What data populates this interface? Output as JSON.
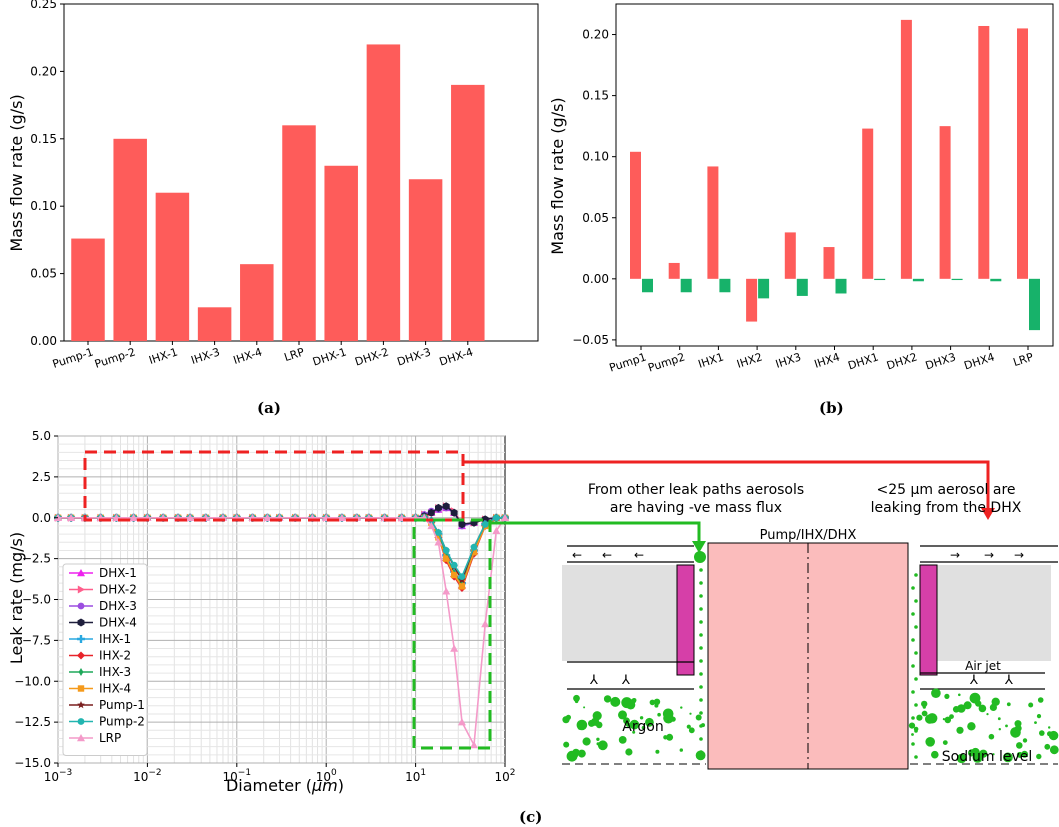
{
  "captions": {
    "a": "(a)",
    "b": "(b)",
    "c": "(c)"
  },
  "colors": {
    "red": "#fe5c5a",
    "green": "#17b26a",
    "diagram_pink": "#fbbcbc",
    "magenta": "#d63fa8",
    "grey": "#e0e0e0",
    "arrow_red": "#ee2222",
    "arrow_green": "#22bb22"
  },
  "chart_data": [
    {
      "id": "a",
      "type": "bar",
      "categories": [
        "Pump-1",
        "Pump-2",
        "IHX-1",
        "IHX-3",
        "IHX-4",
        "LRP",
        "DHX-1",
        "DHX-2",
        "DHX-3",
        "DHX-4"
      ],
      "values": [
        0.076,
        0.15,
        0.11,
        0.025,
        0.057,
        0.16,
        0.13,
        0.22,
        0.12,
        0.19
      ],
      "xlabel": "",
      "ylabel": "Mass flow rate (g/s)",
      "ylim": [
        0,
        0.25
      ],
      "yticks": [
        "0.00",
        "0.05",
        "0.10",
        "0.15",
        "0.20",
        "0.25"
      ],
      "ytick_values": [
        0,
        0.05,
        0.1,
        0.15,
        0.2,
        0.25
      ]
    },
    {
      "id": "b",
      "type": "bar",
      "categories": [
        "Pump1",
        "Pump2",
        "IHX1",
        "IHX2",
        "IHX3",
        "IHX4",
        "DHX1",
        "DHX2",
        "DHX3",
        "DHX4",
        "LRP"
      ],
      "series": [
        {
          "name": "positive",
          "values": [
            0.104,
            0.013,
            0.092,
            -0.035,
            0.038,
            0.026,
            0.123,
            0.212,
            0.125,
            0.207,
            0.205
          ]
        },
        {
          "name": "negative",
          "values": [
            -0.011,
            -0.011,
            -0.011,
            -0.016,
            -0.014,
            -0.012,
            -0.001,
            -0.002,
            -0.001,
            -0.002,
            -0.042
          ]
        }
      ],
      "xlabel": "",
      "ylabel": "Mass flow rate (g/s)",
      "ylim": [
        -0.055,
        0.225
      ],
      "yticks": [
        "−0.05",
        "0.00",
        "0.05",
        "0.10",
        "0.15",
        "0.20"
      ],
      "ytick_values": [
        -0.05,
        0,
        0.05,
        0.1,
        0.15,
        0.2
      ]
    },
    {
      "id": "c",
      "type": "line",
      "xscale": "log",
      "xlim": [
        0.001,
        100
      ],
      "ylim": [
        -15,
        5
      ],
      "xticks": [
        "10",
        "10",
        "10",
        "10",
        "10",
        "10"
      ],
      "xtick_exponents": [
        "−3",
        "−2",
        "−1",
        "0",
        "1",
        "2"
      ],
      "xtick_values": [
        0.001,
        0.01,
        0.1,
        1,
        10,
        100
      ],
      "yticks": [
        "5.0",
        "2.5",
        "0.0",
        "−2.5",
        "−5.0",
        "−7.5",
        "−10.0",
        "−12.5",
        "−15.0"
      ],
      "ytick_values": [
        5,
        2.5,
        0,
        -2.5,
        -5,
        -7.5,
        -10,
        -12.5,
        -15
      ],
      "xlabel": "Diameter (",
      "xlabel_unit": "μm",
      "xlabel_close": ")",
      "ylabel": "Leak rate (mg/s)",
      "legend_position": "lower-left",
      "x": [
        0.001,
        0.0014,
        0.002,
        0.003,
        0.0045,
        0.007,
        0.01,
        0.015,
        0.022,
        0.03,
        0.045,
        0.07,
        0.1,
        0.15,
        0.22,
        0.3,
        0.45,
        0.7,
        1,
        1.5,
        2.2,
        3,
        4.5,
        7,
        10,
        12.5,
        15,
        18,
        22,
        27,
        33,
        45,
        60,
        80,
        100
      ],
      "series": [
        {
          "name": "DHX-1",
          "color": "#ee22ee",
          "marker": "triangle-up",
          "tail": [
            0.2,
            0.3,
            0.5,
            0.6,
            0.3,
            -0.5,
            -0.3,
            -0.1,
            0,
            0
          ]
        },
        {
          "name": "DHX-2",
          "color": "#ff5e8c",
          "marker": "triangle-right",
          "tail": [
            0.2,
            0.3,
            0.6,
            0.7,
            0.4,
            -0.4,
            -0.3,
            -0.1,
            0,
            0
          ]
        },
        {
          "name": "DHX-3",
          "color": "#9b4de0",
          "marker": "circle",
          "tail": [
            0.2,
            0.4,
            0.5,
            0.6,
            0.3,
            -0.5,
            -0.3,
            -0.1,
            0,
            0
          ]
        },
        {
          "name": "DHX-4",
          "color": "#1e1e3c",
          "marker": "hexagon",
          "tail": [
            0.1,
            0.3,
            0.6,
            0.7,
            0.3,
            -0.4,
            -0.3,
            -0.1,
            0,
            0
          ]
        },
        {
          "name": "IHX-1",
          "color": "#29a8e0",
          "marker": "plus",
          "tail": [
            0,
            -0.2,
            -1.0,
            -2.3,
            -3.3,
            -4.0,
            -2.0,
            -0.4,
            0,
            0
          ]
        },
        {
          "name": "IHX-2",
          "color": "#e8232a",
          "marker": "diamond",
          "tail": [
            0,
            -0.3,
            -1.2,
            -2.6,
            -3.6,
            -4.3,
            -2.2,
            -0.5,
            0,
            0
          ]
        },
        {
          "name": "IHX-3",
          "color": "#1fa85a",
          "marker": "thin-diamond",
          "tail": [
            0,
            -0.2,
            -1.1,
            -2.4,
            -3.4,
            -4.1,
            -2.1,
            -0.4,
            0,
            0
          ]
        },
        {
          "name": "IHX-4",
          "color": "#f59a1b",
          "marker": "square",
          "tail": [
            0,
            -0.3,
            -1.2,
            -2.5,
            -3.5,
            -4.2,
            -2.1,
            -0.5,
            0,
            0
          ]
        },
        {
          "name": "Pump-1",
          "color": "#7a1f1f",
          "marker": "star",
          "tail": [
            0,
            -0.2,
            -0.9,
            -2.0,
            -3.0,
            -3.8,
            -1.8,
            -0.4,
            0,
            0
          ]
        },
        {
          "name": "Pump-2",
          "color": "#22b5b0",
          "marker": "circle",
          "tail": [
            0,
            -0.2,
            -0.9,
            -2.0,
            -2.9,
            -3.6,
            -1.8,
            -0.4,
            0,
            0
          ]
        },
        {
          "name": "LRP",
          "color": "#f49ac9",
          "marker": "triangle-up",
          "tail": [
            0,
            -0.5,
            -1.5,
            -4.5,
            -8.0,
            -12.5,
            -13.9,
            -6.5,
            -0.8,
            0
          ]
        }
      ]
    }
  ],
  "diagram": {
    "label_left": "From other leak paths aerosols",
    "label_left_2": "are having -ve mass flux",
    "label_right": "<25 μm aerosol are",
    "label_right_2": "leaking from the DHX",
    "center_label": "Pump/IHX/DHX",
    "air_jet": "Air jet",
    "argon": "Argon",
    "sodium_level": "Sodium level"
  }
}
